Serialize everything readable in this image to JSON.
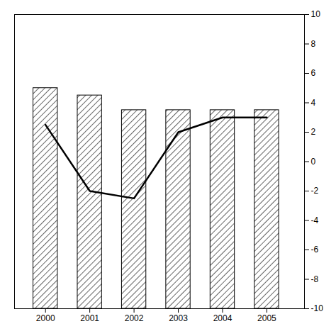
{
  "chart_data": {
    "type": "bar",
    "x": [
      2000,
      2001,
      2002,
      2003,
      2004,
      2005
    ],
    "series": [
      {
        "type": "bar",
        "color": "black",
        "values": [
          5.0,
          4.5,
          3.5,
          3.5,
          3.5,
          3.5
        ]
      },
      {
        "type": "line",
        "color": "black",
        "values": [
          2.5,
          -2.0,
          -2.5,
          2.0,
          3.0,
          3.0
        ]
      }
    ],
    "xlim": [
      1999.3,
      2005.85
    ],
    "xticks": [
      2000,
      2001,
      2002,
      2003,
      2004,
      2005
    ],
    "ylim": [
      -10,
      10
    ],
    "yticks": [
      -10,
      -8,
      -6,
      -4,
      -2,
      0,
      2,
      4,
      6,
      8,
      10
    ]
  }
}
